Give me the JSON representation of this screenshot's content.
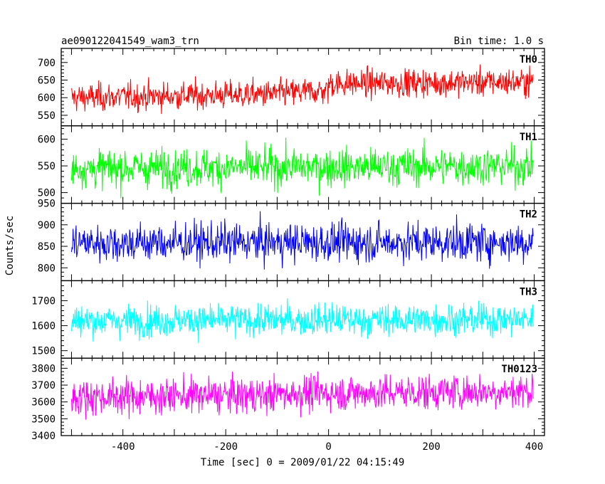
{
  "chart_data": {
    "type": "line",
    "title": "ae090122041549_wam3_trn",
    "subtitle": "Bin time: 1.0 s",
    "xlabel": "Time [sec] 0 = 2009/01/22 04:15:49",
    "ylabel": "Counts/sec",
    "xlim": [
      -520,
      420
    ],
    "x_range": [
      -500,
      398
    ],
    "xticks": [
      -400,
      -200,
      0,
      200,
      400
    ],
    "grid": false,
    "panels": [
      {
        "name": "TH0",
        "color": "#ff0000",
        "ylim": [
          520,
          740
        ],
        "yticks": [
          550,
          600,
          650,
          700
        ],
        "segments": [
          {
            "x": [
              -500,
              -100
            ],
            "y": [
              600,
              610
            ]
          },
          {
            "x": [
              -100,
              0
            ],
            "y": [
              612,
              620
            ]
          },
          {
            "x": [
              0,
              398
            ],
            "y": [
              640,
              645
            ]
          }
        ],
        "noise": 28
      },
      {
        "name": "TH1",
        "color": "#00ff00",
        "ylim": [
          480,
          625
        ],
        "yticks": [
          500,
          550,
          600
        ],
        "segments": [
          {
            "x": [
              -500,
              398
            ],
            "y": [
              545,
              550
            ]
          }
        ],
        "noise": 25
      },
      {
        "name": "TH2",
        "color": "#0000ff",
        "ylim": [
          770,
          950
        ],
        "yticks": [
          800,
          850,
          900,
          950
        ],
        "segments": [
          {
            "x": [
              -500,
              398
            ],
            "y": [
              858,
              860
            ]
          }
        ],
        "noise": 32
      },
      {
        "name": "TH3",
        "color": "#00ffff",
        "ylim": [
          1470,
          1780
        ],
        "yticks": [
          1500,
          1600,
          1700
        ],
        "segments": [
          {
            "x": [
              -500,
              398
            ],
            "y": [
              1620,
              1625
            ]
          }
        ],
        "noise": 45
      },
      {
        "name": "TH0123",
        "color": "#ff00ff",
        "ylim": [
          3400,
          3860
        ],
        "yticks": [
          3400,
          3500,
          3600,
          3700,
          3800
        ],
        "segments": [
          {
            "x": [
              -500,
              -100
            ],
            "y": [
              3630,
              3640
            ]
          },
          {
            "x": [
              -100,
              398
            ],
            "y": [
              3650,
              3665
            ]
          }
        ],
        "noise": 75
      }
    ]
  }
}
